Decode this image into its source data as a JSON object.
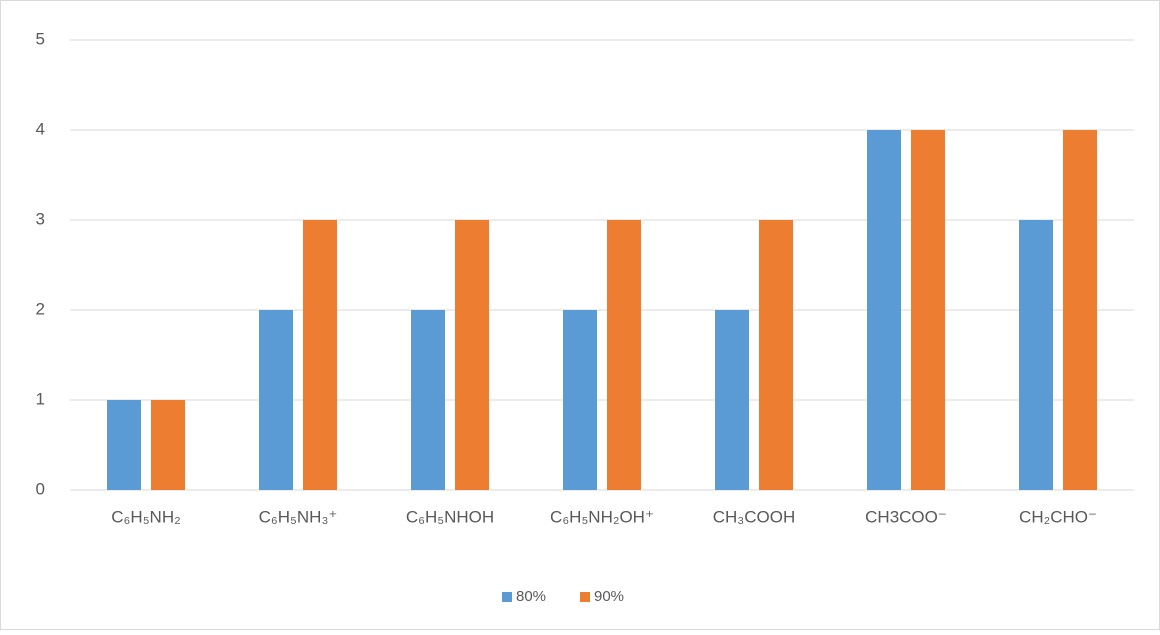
{
  "chart_data": {
    "type": "bar",
    "categories": [
      "C₆H₅NH₂",
      "C₆H₅NH₃⁺",
      "C₆H₅NHOH",
      "C₆H₅NH₂OH⁺",
      "CH₃COOH",
      "CH3COO⁻",
      "CH₂CHO⁻"
    ],
    "series": [
      {
        "name": "80%",
        "color": "#5b9bd5",
        "values": [
          1,
          2,
          2,
          2,
          2,
          4,
          3
        ]
      },
      {
        "name": "90%",
        "color": "#ed7d31",
        "values": [
          1,
          3,
          3,
          3,
          3,
          4,
          4
        ]
      }
    ],
    "ylim": [
      0,
      5
    ],
    "yticks": [
      0,
      1,
      2,
      3,
      4,
      5
    ],
    "grid": true,
    "legend": "bottom"
  }
}
